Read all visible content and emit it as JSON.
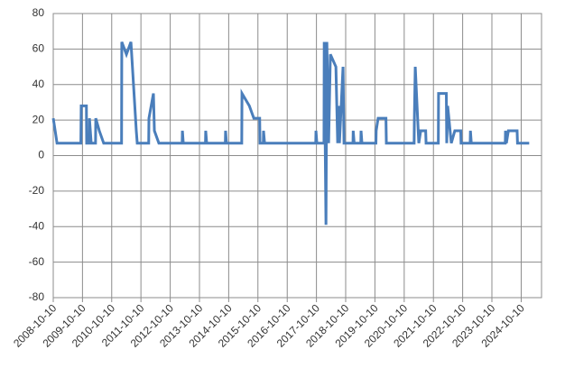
{
  "chart_data": {
    "type": "line",
    "color": "#4a7ebb",
    "grid": true,
    "ylim": [
      -80,
      80
    ],
    "yticks": [
      -80,
      -60,
      -40,
      -20,
      0,
      20,
      40,
      60,
      80
    ],
    "xlim": [
      "2008-10-10",
      "2025-06-21"
    ],
    "xticks": [
      "2008-10-10",
      "2009-10-10",
      "2010-10-10",
      "2011-10-10",
      "2012-10-10",
      "2013-10-10",
      "2014-10-10",
      "2015-10-10",
      "2016-10-10",
      "2017-10-10",
      "2018-10-10",
      "2019-10-10",
      "2020-10-10",
      "2021-10-10",
      "2022-10-10",
      "2023-10-10",
      "2024-10-10"
    ],
    "x": [
      "2008-10-10",
      "2008-11-03",
      "2008-11-26",
      "2009-09-20",
      "2009-09-24",
      "2009-11-28",
      "2009-12-01",
      "2010-01-02",
      "2010-01-05",
      "2010-01-27",
      "2010-03-22",
      "2010-03-25",
      "2010-05-08",
      "2010-07-02",
      "2011-02-10",
      "2011-02-13",
      "2011-04-12",
      "2011-06-07",
      "2011-08-13",
      "2011-08-25",
      "2012-01-15",
      "2012-01-18",
      "2012-03-14",
      "2012-03-26",
      "2012-05-21",
      "2013-03-08",
      "2013-03-11",
      "2013-03-22",
      "2013-12-24",
      "2013-12-27",
      "2014-01-08",
      "2014-08-29",
      "2014-09-01",
      "2014-09-12",
      "2015-03-22",
      "2015-03-25",
      "2015-06-25",
      "2015-08-20",
      "2015-11-01",
      "2015-11-05",
      "2015-12-16",
      "2015-12-19",
      "2016-01-01",
      "2017-10-01",
      "2017-10-04",
      "2017-10-15",
      "2018-01-12",
      "2018-01-15",
      "2018-02-06",
      "2018-02-17",
      "2018-03-11",
      "2018-04-02",
      "2018-06-10",
      "2018-07-02",
      "2018-07-13",
      "2018-07-24",
      "2018-09-07",
      "2018-09-19",
      "2019-01-09",
      "2019-01-12",
      "2019-01-24",
      "2019-04-17",
      "2019-04-20",
      "2019-05-01",
      "2019-10-23",
      "2019-10-26",
      "2019-11-19",
      "2020-02-25",
      "2020-03-01",
      "2021-02-11",
      "2021-02-14",
      "2021-02-25",
      "2021-04-10",
      "2021-05-04",
      "2021-07-05",
      "2021-07-10",
      "2021-12-10",
      "2021-12-13",
      "2022-03-20",
      "2022-03-25",
      "2022-04-06",
      "2022-05-21",
      "2022-07-04",
      "2022-09-16",
      "2022-09-20",
      "2023-01-12",
      "2023-01-15",
      "2023-01-26",
      "2024-03-25",
      "2024-03-28",
      "2024-04-08",
      "2024-05-03",
      "2024-08-20",
      "2024-08-25",
      "2025-01-18"
    ],
    "values": [
      21,
      14,
      7,
      7,
      28,
      28,
      7,
      7,
      21,
      7,
      7,
      21,
      14,
      7,
      7,
      64,
      57,
      64,
      14,
      7,
      7,
      21,
      35,
      14,
      7,
      7,
      14,
      7,
      7,
      14,
      7,
      7,
      14,
      7,
      7,
      35,
      28,
      21,
      21,
      7,
      7,
      14,
      7,
      7,
      14,
      7,
      7,
      64,
      -39,
      64,
      7,
      57,
      50,
      7,
      28,
      7,
      50,
      7,
      7,
      14,
      7,
      7,
      14,
      7,
      7,
      14,
      21,
      21,
      7,
      7,
      21,
      50,
      7,
      14,
      14,
      7,
      7,
      35,
      35,
      7,
      28,
      7,
      14,
      14,
      7,
      7,
      14,
      7,
      7,
      14,
      7,
      14,
      14,
      7,
      7
    ]
  }
}
